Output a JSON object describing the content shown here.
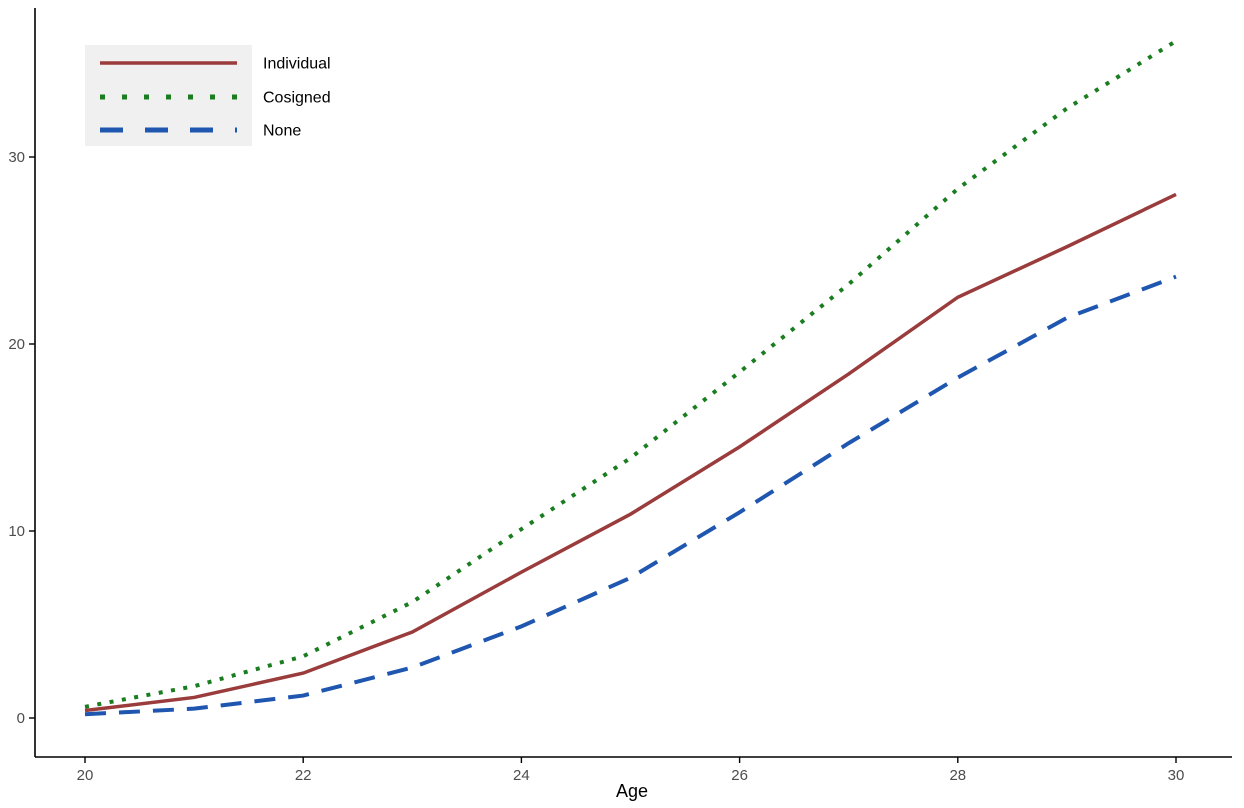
{
  "chart_data": {
    "type": "line",
    "title": "",
    "xlabel": "Age",
    "ylabel": "",
    "x": [
      20,
      21,
      22,
      23,
      24,
      25,
      26,
      27,
      28,
      29,
      30
    ],
    "x_ticks": [
      20,
      22,
      24,
      26,
      28,
      30
    ],
    "y_ticks": [
      0,
      10,
      20,
      30
    ],
    "xlim": [
      20,
      30
    ],
    "ylim": [
      0,
      37.5
    ],
    "grid": false,
    "legend_position": "top-left",
    "series": [
      {
        "name": "Individual",
        "color": "#9a3b3c",
        "line_style": "solid",
        "values": [
          0.4,
          1.1,
          2.4,
          4.6,
          7.8,
          10.9,
          14.5,
          18.4,
          22.5,
          25.2,
          28.0
        ]
      },
      {
        "name": "Cosigned",
        "color": "#1a7d1f",
        "line_style": "dotted",
        "values": [
          0.6,
          1.7,
          3.3,
          6.2,
          10.1,
          13.9,
          18.5,
          23.2,
          28.3,
          32.6,
          36.2
        ]
      },
      {
        "name": "None",
        "color": "#1e56b0",
        "line_style": "longdash",
        "values": [
          0.2,
          0.5,
          1.2,
          2.7,
          4.9,
          7.5,
          11.0,
          14.7,
          18.2,
          21.4,
          23.6
        ]
      }
    ]
  },
  "colors": {
    "axis": "#000000",
    "tick_label": "#4d4d4d",
    "axis_label": "#000000",
    "legend_background": "#f0f0f0",
    "background": "#ffffff"
  }
}
